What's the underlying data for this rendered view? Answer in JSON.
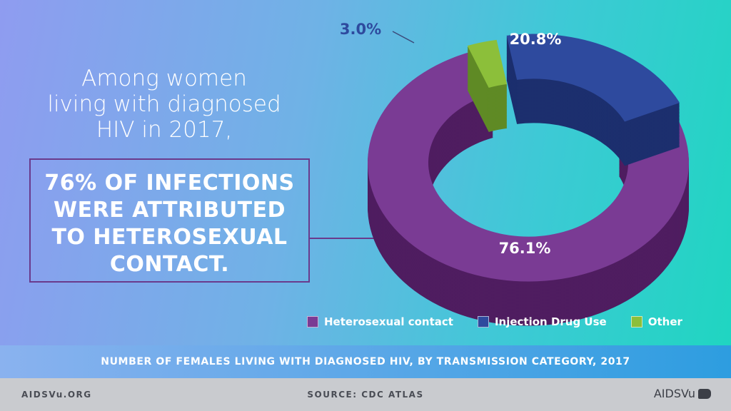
{
  "intro": {
    "lines": [
      "Among women",
      "living with diagnosed",
      "HIV in 2017,"
    ]
  },
  "callout": {
    "lines": [
      "76% of infections",
      "were attributed",
      "to heterosexual",
      "contact."
    ]
  },
  "chart_data": {
    "type": "pie",
    "style": "3d-donut",
    "slices": [
      {
        "label": "Heterosexual contact",
        "value": 76.1,
        "display": "76.1%",
        "color": "#7a3b94",
        "side_color": "#4f1d60"
      },
      {
        "label": "Injection Drug Use",
        "value": 20.8,
        "display": "20.8%",
        "color": "#2e4a9e",
        "side_color": "#1c2f6e"
      },
      {
        "label": "Other",
        "value": 3.0,
        "display": "3.0%",
        "color": "#8cbf3a",
        "side_color": "#5f8a25"
      }
    ],
    "title": "Number of females living with diagnosed HIV, by transmission category, 2017",
    "legend_position": "bottom-right"
  },
  "footer": {
    "left": "AIDSVu.ORG",
    "center": "SOURCE: CDC ATLAS",
    "logo": "AIDSVu",
    "logo_icon": "us-map-icon"
  }
}
